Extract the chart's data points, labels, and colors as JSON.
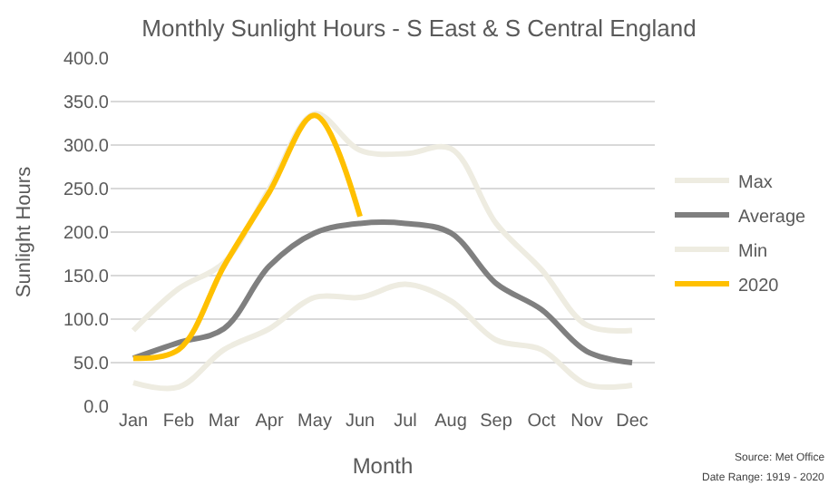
{
  "chart_data": {
    "type": "line",
    "title": "Monthly Sunlight Hours - S East & S Central England",
    "xlabel": "Month",
    "ylabel": "Sunlight Hours",
    "categories": [
      "Jan",
      "Feb",
      "Mar",
      "Apr",
      "May",
      "Jun",
      "Jul",
      "Aug",
      "Sep",
      "Oct",
      "Nov",
      "Dec"
    ],
    "series": [
      {
        "name": "Max",
        "color": "#eeece1",
        "values": [
          87,
          135,
          165,
          250,
          336,
          294,
          290,
          296,
          210,
          157,
          93,
          87
        ]
      },
      {
        "name": "Average",
        "color": "#7f7f7f",
        "values": [
          55,
          73,
          89,
          161,
          199,
          210,
          210,
          199,
          141,
          111,
          63,
          50
        ]
      },
      {
        "name": "Min",
        "color": "#eeece1",
        "values": [
          27,
          22,
          65,
          89,
          125,
          125,
          140,
          121,
          76,
          65,
          25,
          24
        ]
      },
      {
        "name": "2020",
        "color": "#ffc000",
        "values": [
          55,
          65,
          161,
          246,
          334,
          218,
          null,
          null,
          null,
          null,
          null,
          null
        ]
      }
    ],
    "ylim": [
      0,
      400
    ],
    "yticks": [
      {
        "value": 0,
        "label": "0.0"
      },
      {
        "value": 50,
        "label": "50.0"
      },
      {
        "value": 100,
        "label": "100.0"
      },
      {
        "value": 150,
        "label": "150.0"
      },
      {
        "value": 200,
        "label": "200.0"
      },
      {
        "value": 250,
        "label": "250.0"
      },
      {
        "value": 300,
        "label": "300.0"
      },
      {
        "value": 350,
        "label": "350.0"
      },
      {
        "value": 400,
        "label": "400.0"
      }
    ],
    "grid": "y",
    "legend": "right",
    "marker": "none",
    "line_style": "solid",
    "annotations": [
      "Source: Met Office",
      "Date Range: 1919 - 2020"
    ]
  }
}
